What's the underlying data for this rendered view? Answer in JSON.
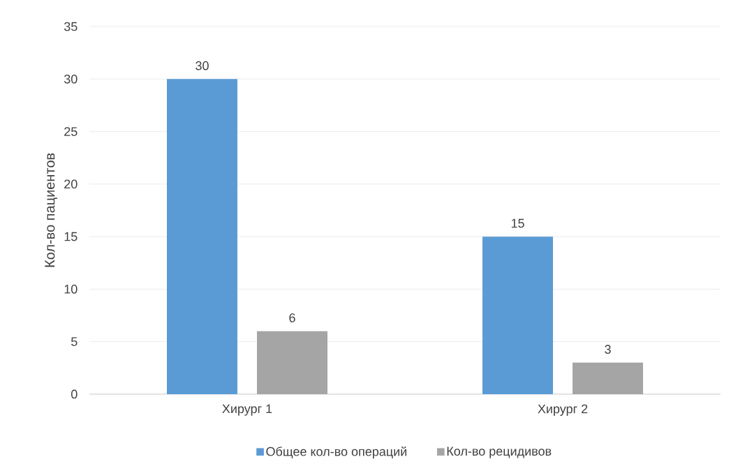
{
  "chart_data": {
    "type": "bar",
    "ylabel": "Кол-во пациентов",
    "categories": [
      "Хирург 1",
      "Хирург 2"
    ],
    "series": [
      {
        "name": "Общее кол-во операций",
        "color": "#5b9bd5",
        "values": [
          30,
          15
        ]
      },
      {
        "name": "Кол-во рецидивов",
        "color": "#a5a5a5",
        "values": [
          6,
          3
        ]
      }
    ],
    "ylim": [
      0,
      35
    ],
    "yticks": [
      0,
      5,
      10,
      15,
      20,
      25,
      30,
      35
    ],
    "grid": "y",
    "legend": "bottom",
    "data_labels": true
  }
}
